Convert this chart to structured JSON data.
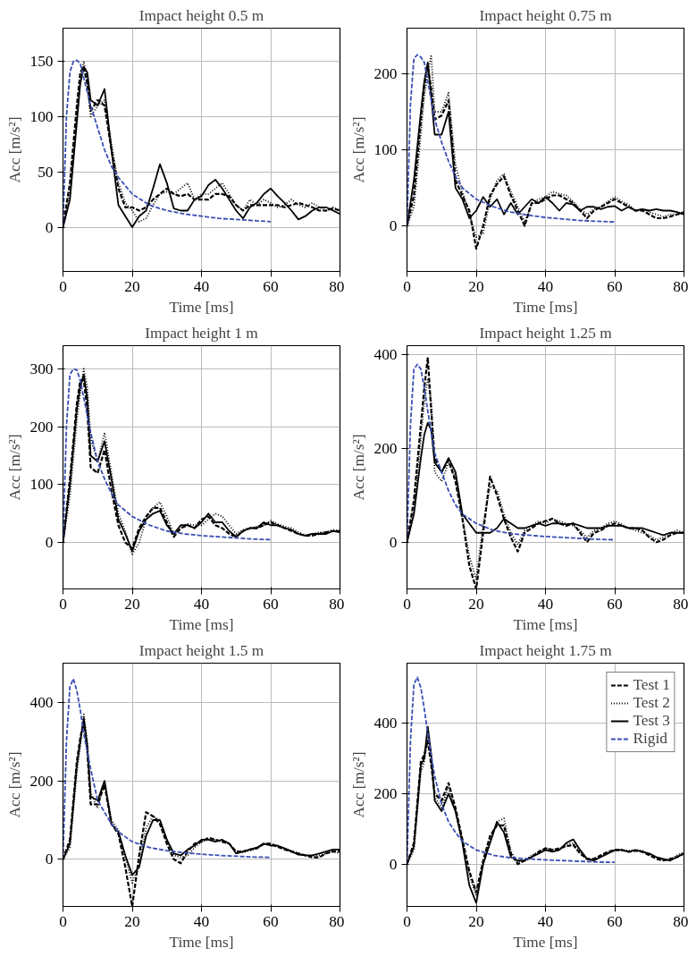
{
  "chart_data": [
    {
      "type": "line",
      "title": "Impact height 0.5 m",
      "xlabel": "Time [ms]",
      "ylabel": "Acc [m/s²]",
      "xlim": [
        0,
        80
      ],
      "xticks": [
        0,
        20,
        40,
        60,
        80
      ],
      "ylim": [
        -40,
        180
      ],
      "yticks": [
        0,
        50,
        100,
        150
      ],
      "grid": true,
      "legend": false,
      "x": [
        0,
        2,
        4,
        5,
        6,
        7,
        8,
        10,
        12,
        14,
        16,
        18,
        20,
        22,
        24,
        26,
        28,
        30,
        32,
        34,
        36,
        38,
        40,
        42,
        44,
        46,
        48,
        50,
        52,
        54,
        56,
        58,
        60,
        62,
        64,
        66,
        68,
        70,
        72,
        74,
        76,
        78,
        80
      ],
      "series": [
        {
          "color": "#000000",
          "line_style": "dashed",
          "values": [
            0,
            40,
            110,
            140,
            145,
            130,
            105,
            115,
            110,
            70,
            35,
            18,
            18,
            15,
            18,
            25,
            30,
            35,
            30,
            28,
            30,
            25,
            25,
            25,
            30,
            30,
            28,
            20,
            15,
            20,
            20,
            20,
            20,
            20,
            18,
            20,
            22,
            20,
            18,
            15,
            15,
            17,
            15
          ]
        },
        {
          "color": "#000000",
          "line_style": "dotted",
          "values": [
            0,
            30,
            100,
            135,
            150,
            135,
            100,
            110,
            115,
            75,
            40,
            22,
            15,
            5,
            8,
            20,
            30,
            32,
            30,
            35,
            40,
            25,
            30,
            30,
            35,
            40,
            30,
            20,
            15,
            25,
            20,
            25,
            22,
            18,
            20,
            25,
            20,
            18,
            22,
            18,
            15,
            18,
            15
          ]
        },
        {
          "color": "#000000",
          "line_style": "solid",
          "values": [
            0,
            25,
            95,
            130,
            145,
            140,
            115,
            110,
            125,
            70,
            20,
            10,
            0,
            10,
            15,
            35,
            57,
            40,
            17,
            15,
            15,
            25,
            28,
            38,
            43,
            35,
            25,
            15,
            8,
            18,
            22,
            30,
            35,
            28,
            22,
            15,
            7,
            10,
            15,
            18,
            18,
            15,
            12
          ]
        },
        {
          "color": "#3a4fb4",
          "line_style": "dashed",
          "x": [
            0,
            1,
            2,
            3,
            4,
            5,
            6,
            8,
            10,
            12,
            14,
            16,
            20,
            25,
            30,
            35,
            40,
            45,
            50,
            55,
            60
          ],
          "values": [
            0,
            100,
            140,
            150,
            151,
            148,
            135,
            110,
            90,
            70,
            55,
            45,
            30,
            20,
            15,
            12,
            10,
            8,
            7,
            6,
            5
          ]
        }
      ]
    },
    {
      "type": "line",
      "title": "Impact height 0.75 m",
      "xlabel": "Time [ms]",
      "ylabel": "Acc [m/s²]",
      "xlim": [
        0,
        80
      ],
      "xticks": [
        0,
        20,
        40,
        60,
        80
      ],
      "ylim": [
        -60,
        260
      ],
      "yticks": [
        0,
        100,
        200
      ],
      "grid": true,
      "legend": false,
      "x": [
        0,
        2,
        4,
        5,
        6,
        7,
        8,
        10,
        12,
        14,
        16,
        18,
        20,
        22,
        24,
        26,
        28,
        30,
        32,
        34,
        36,
        38,
        40,
        42,
        44,
        46,
        48,
        50,
        52,
        54,
        56,
        58,
        60,
        62,
        64,
        66,
        68,
        70,
        72,
        74,
        76,
        78,
        80
      ],
      "series": [
        {
          "color": "#000000",
          "line_style": "dashed",
          "values": [
            0,
            40,
            140,
            185,
            210,
            180,
            140,
            145,
            165,
            60,
            40,
            20,
            -30,
            0,
            40,
            55,
            65,
            40,
            20,
            0,
            30,
            30,
            35,
            40,
            40,
            35,
            30,
            20,
            10,
            20,
            25,
            30,
            35,
            30,
            25,
            20,
            20,
            15,
            10,
            10,
            12,
            15,
            18
          ]
        },
        {
          "color": "#000000",
          "line_style": "dotted",
          "values": [
            0,
            25,
            120,
            170,
            200,
            225,
            150,
            150,
            175,
            80,
            45,
            15,
            -15,
            -10,
            35,
            60,
            68,
            45,
            25,
            5,
            28,
            35,
            38,
            45,
            42,
            40,
            32,
            22,
            15,
            22,
            25,
            32,
            38,
            32,
            28,
            20,
            22,
            18,
            15,
            12,
            15,
            15,
            16
          ]
        },
        {
          "color": "#000000",
          "line_style": "solid",
          "values": [
            0,
            60,
            150,
            190,
            215,
            170,
            120,
            120,
            150,
            50,
            35,
            10,
            20,
            38,
            25,
            35,
            15,
            30,
            15,
            25,
            35,
            30,
            38,
            30,
            20,
            30,
            28,
            20,
            25,
            25,
            22,
            25,
            26,
            20,
            25,
            20,
            22,
            20,
            22,
            20,
            20,
            18,
            15
          ]
        },
        {
          "color": "#3a4fb4",
          "line_style": "dashed",
          "x": [
            0,
            1,
            2,
            3,
            4,
            5,
            6,
            8,
            10,
            12,
            14,
            16,
            20,
            25,
            30,
            35,
            40,
            45,
            50,
            55,
            60
          ],
          "values": [
            0,
            160,
            220,
            225,
            222,
            215,
            190,
            140,
            110,
            85,
            65,
            50,
            35,
            25,
            18,
            14,
            11,
            9,
            7,
            6,
            5
          ]
        }
      ]
    },
    {
      "type": "line",
      "title": "Impact height 1 m",
      "xlabel": "Time [ms]",
      "ylabel": "Acc [m/s²]",
      "xlim": [
        0,
        80
      ],
      "xticks": [
        0,
        20,
        40,
        60,
        80
      ],
      "ylim": [
        -80,
        340
      ],
      "yticks": [
        0,
        100,
        200,
        300
      ],
      "grid": true,
      "legend": false,
      "x": [
        0,
        2,
        4,
        5,
        6,
        7,
        8,
        10,
        12,
        14,
        16,
        18,
        20,
        22,
        24,
        26,
        28,
        30,
        32,
        34,
        36,
        38,
        40,
        42,
        44,
        46,
        48,
        50,
        52,
        54,
        56,
        58,
        60,
        62,
        64,
        66,
        68,
        70,
        72,
        74,
        76,
        78,
        80
      ],
      "series": [
        {
          "color": "#000000",
          "line_style": "dashed",
          "values": [
            0,
            110,
            240,
            280,
            280,
            230,
            130,
            120,
            160,
            90,
            30,
            0,
            -10,
            25,
            45,
            60,
            60,
            35,
            10,
            25,
            30,
            25,
            40,
            45,
            30,
            25,
            15,
            10,
            20,
            25,
            25,
            30,
            35,
            30,
            25,
            20,
            15,
            12,
            12,
            15,
            18,
            20,
            20
          ]
        },
        {
          "color": "#000000",
          "line_style": "dotted",
          "values": [
            0,
            80,
            210,
            260,
            300,
            270,
            180,
            140,
            190,
            120,
            50,
            20,
            -20,
            0,
            40,
            60,
            70,
            45,
            15,
            28,
            32,
            30,
            30,
            40,
            50,
            45,
            30,
            15,
            22,
            25,
            28,
            30,
            38,
            32,
            28,
            25,
            18,
            12,
            15,
            18,
            18,
            22,
            20
          ]
        },
        {
          "color": "#000000",
          "line_style": "solid",
          "values": [
            0,
            100,
            230,
            270,
            290,
            250,
            150,
            140,
            175,
            110,
            40,
            15,
            -15,
            20,
            40,
            50,
            55,
            30,
            15,
            30,
            30,
            25,
            35,
            50,
            35,
            35,
            20,
            10,
            20,
            25,
            25,
            35,
            30,
            30,
            25,
            22,
            15,
            12,
            15,
            15,
            15,
            20,
            18
          ]
        },
        {
          "color": "#3a4fb4",
          "line_style": "dashed",
          "x": [
            0,
            1,
            2,
            3,
            4,
            5,
            6,
            8,
            10,
            12,
            14,
            16,
            20,
            25,
            30,
            35,
            40,
            45,
            50,
            55,
            60
          ],
          "values": [
            0,
            200,
            290,
            300,
            298,
            280,
            250,
            190,
            140,
            110,
            85,
            65,
            45,
            30,
            20,
            15,
            12,
            10,
            8,
            6,
            5
          ]
        }
      ]
    },
    {
      "type": "line",
      "title": "Impact height 1.25 m",
      "xlabel": "Time [ms]",
      "ylabel": "Acc [m/s²]",
      "xlim": [
        0,
        80
      ],
      "xticks": [
        0,
        20,
        40,
        60,
        80
      ],
      "ylim": [
        -100,
        420
      ],
      "yticks": [
        0,
        200,
        400
      ],
      "grid": true,
      "legend": false,
      "x": [
        0,
        2,
        4,
        5,
        6,
        7,
        8,
        10,
        12,
        14,
        16,
        18,
        20,
        22,
        24,
        26,
        28,
        30,
        32,
        34,
        36,
        38,
        40,
        42,
        44,
        46,
        48,
        50,
        52,
        54,
        56,
        58,
        60,
        62,
        64,
        66,
        68,
        70,
        72,
        74,
        76,
        78,
        80
      ],
      "series": [
        {
          "color": "#000000",
          "line_style": "dashed",
          "values": [
            0,
            90,
            250,
            330,
            395,
            280,
            180,
            150,
            175,
            130,
            50,
            -50,
            -100,
            20,
            140,
            100,
            50,
            10,
            -20,
            20,
            30,
            40,
            45,
            50,
            40,
            35,
            40,
            20,
            0,
            20,
            25,
            35,
            40,
            35,
            30,
            30,
            25,
            10,
            0,
            5,
            15,
            20,
            20
          ]
        },
        {
          "color": "#000000",
          "line_style": "dotted",
          "values": [
            0,
            70,
            220,
            300,
            350,
            300,
            150,
            130,
            170,
            140,
            55,
            -30,
            -80,
            40,
            120,
            110,
            60,
            20,
            -5,
            25,
            35,
            45,
            40,
            50,
            45,
            40,
            35,
            25,
            10,
            25,
            30,
            40,
            45,
            38,
            30,
            25,
            20,
            15,
            5,
            10,
            20,
            25,
            20
          ]
        },
        {
          "color": "#000000",
          "line_style": "solid",
          "values": [
            0,
            60,
            180,
            230,
            255,
            240,
            170,
            150,
            180,
            150,
            60,
            40,
            20,
            20,
            20,
            30,
            50,
            40,
            30,
            30,
            35,
            40,
            35,
            40,
            40,
            38,
            40,
            35,
            30,
            30,
            30,
            35,
            35,
            35,
            30,
            30,
            30,
            25,
            20,
            15,
            20,
            20,
            20
          ]
        },
        {
          "color": "#3a4fb4",
          "line_style": "dashed",
          "x": [
            0,
            1,
            2,
            3,
            4,
            5,
            6,
            8,
            10,
            12,
            14,
            16,
            20,
            25,
            30,
            35,
            40,
            45,
            50,
            55,
            60
          ],
          "values": [
            0,
            250,
            370,
            380,
            370,
            330,
            280,
            190,
            150,
            110,
            80,
            60,
            40,
            25,
            18,
            15,
            12,
            10,
            8,
            6,
            5
          ]
        }
      ]
    },
    {
      "type": "line",
      "title": "Impact height 1.5 m",
      "xlabel": "Time [ms]",
      "ylabel": "Acc [m/s²]",
      "xlim": [
        0,
        80
      ],
      "xticks": [
        0,
        20,
        40,
        60,
        80
      ],
      "ylim": [
        -120,
        500
      ],
      "yticks": [
        0,
        200,
        400
      ],
      "grid": true,
      "legend": false,
      "x": [
        0,
        2,
        4,
        5,
        6,
        7,
        8,
        10,
        12,
        14,
        16,
        18,
        20,
        22,
        24,
        26,
        28,
        30,
        32,
        34,
        36,
        38,
        40,
        42,
        44,
        46,
        48,
        50,
        52,
        54,
        56,
        58,
        60,
        62,
        64,
        66,
        68,
        70,
        72,
        74,
        76,
        78,
        80
      ],
      "series": [
        {
          "color": "#000000",
          "line_style": "dashed",
          "values": [
            0,
            50,
            250,
            310,
            350,
            280,
            140,
            140,
            190,
            90,
            65,
            -20,
            -120,
            10,
            120,
            110,
            90,
            40,
            0,
            -10,
            20,
            40,
            45,
            55,
            50,
            45,
            40,
            20,
            20,
            25,
            28,
            40,
            40,
            32,
            25,
            20,
            15,
            10,
            5,
            5,
            15,
            20,
            20
          ]
        },
        {
          "color": "#000000",
          "line_style": "dotted",
          "values": [
            0,
            30,
            220,
            290,
            370,
            300,
            170,
            130,
            200,
            100,
            75,
            5,
            -60,
            -15,
            80,
            110,
            100,
            50,
            10,
            5,
            10,
            30,
            45,
            50,
            50,
            45,
            40,
            20,
            18,
            22,
            28,
            38,
            38,
            32,
            28,
            22,
            15,
            10,
            8,
            10,
            15,
            20,
            15
          ]
        },
        {
          "color": "#000000",
          "line_style": "solid",
          "values": [
            0,
            40,
            240,
            300,
            360,
            290,
            160,
            150,
            200,
            90,
            70,
            10,
            -40,
            -20,
            60,
            100,
            100,
            50,
            15,
            10,
            25,
            35,
            50,
            50,
            45,
            50,
            40,
            15,
            20,
            25,
            30,
            40,
            35,
            35,
            28,
            20,
            12,
            10,
            10,
            15,
            20,
            25,
            25
          ]
        },
        {
          "color": "#3a4fb4",
          "line_style": "dashed",
          "x": [
            0,
            1,
            2,
            3,
            4,
            5,
            6,
            8,
            10,
            12,
            14,
            16,
            20,
            25,
            30,
            35,
            40,
            45,
            50,
            55,
            60
          ],
          "values": [
            0,
            300,
            440,
            460,
            430,
            380,
            320,
            230,
            150,
            120,
            90,
            70,
            45,
            30,
            22,
            17,
            13,
            10,
            8,
            6,
            5
          ]
        }
      ]
    },
    {
      "type": "line",
      "title": "Impact height 1.75 m",
      "xlabel": "Time [ms]",
      "ylabel": "Acc [m/s²]",
      "xlim": [
        0,
        80
      ],
      "xticks": [
        0,
        20,
        40,
        60,
        80
      ],
      "ylim": [
        -120,
        570
      ],
      "yticks": [
        0,
        200,
        400
      ],
      "grid": true,
      "legend": "top right",
      "x": [
        0,
        2,
        4,
        5,
        6,
        7,
        8,
        10,
        12,
        14,
        16,
        18,
        20,
        22,
        24,
        26,
        28,
        30,
        32,
        34,
        36,
        38,
        40,
        42,
        44,
        46,
        48,
        50,
        52,
        54,
        56,
        58,
        60,
        62,
        64,
        66,
        68,
        70,
        72,
        74,
        76,
        78,
        80
      ],
      "series": [
        {
          "name": "Test 1",
          "color": "#000000",
          "line_style": "dashed",
          "values": [
            0,
            60,
            290,
            310,
            350,
            280,
            200,
            180,
            230,
            160,
            70,
            -20,
            -80,
            10,
            80,
            110,
            110,
            30,
            0,
            10,
            20,
            35,
            45,
            40,
            45,
            50,
            55,
            30,
            15,
            15,
            25,
            35,
            40,
            40,
            35,
            38,
            35,
            25,
            15,
            10,
            15,
            20,
            30
          ]
        },
        {
          "name": "Test 2",
          "color": "#000000",
          "line_style": "dotted",
          "values": [
            0,
            40,
            260,
            290,
            370,
            300,
            190,
            160,
            220,
            150,
            65,
            -30,
            -90,
            0,
            70,
            120,
            130,
            35,
            5,
            10,
            25,
            35,
            45,
            42,
            40,
            55,
            60,
            35,
            12,
            12,
            22,
            32,
            38,
            40,
            38,
            40,
            38,
            28,
            18,
            12,
            12,
            25,
            35
          ]
        },
        {
          "name": "Test 3",
          "color": "#000000",
          "line_style": "solid",
          "values": [
            0,
            50,
            280,
            300,
            390,
            310,
            180,
            150,
            200,
            150,
            60,
            -60,
            -110,
            0,
            60,
            120,
            90,
            20,
            10,
            10,
            20,
            30,
            40,
            35,
            40,
            60,
            70,
            40,
            15,
            10,
            20,
            30,
            40,
            40,
            35,
            40,
            35,
            30,
            20,
            15,
            10,
            20,
            30
          ]
        },
        {
          "name": "Rigid",
          "color": "#3a4fb4",
          "line_style": "dashed",
          "x": [
            0,
            1,
            2,
            3,
            4,
            5,
            6,
            8,
            10,
            12,
            14,
            16,
            20,
            25,
            30,
            35,
            40,
            45,
            50,
            55,
            60
          ],
          "values": [
            0,
            350,
            510,
            530,
            500,
            440,
            370,
            250,
            170,
            120,
            90,
            65,
            40,
            25,
            18,
            15,
            12,
            10,
            8,
            6,
            5
          ]
        }
      ]
    }
  ]
}
